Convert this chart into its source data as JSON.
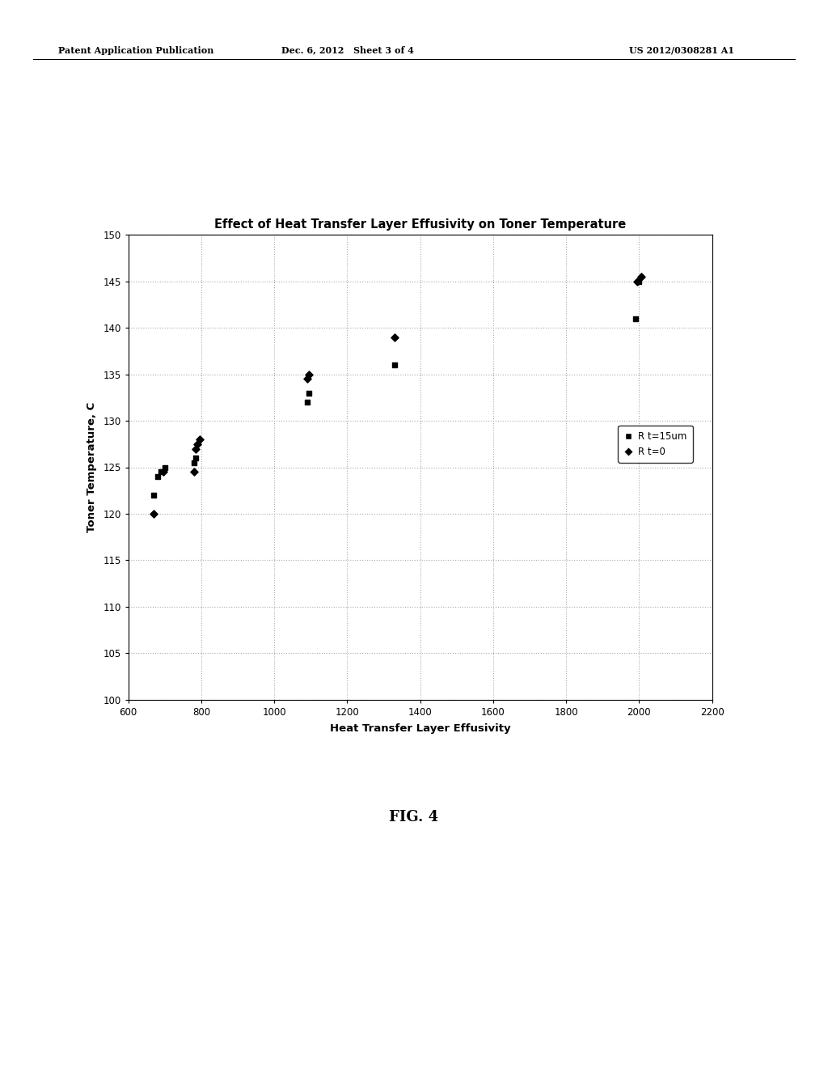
{
  "title": "Effect of Heat Transfer Layer Effusivity on Toner Temperature",
  "xlabel": "Heat Transfer Layer Effusivity",
  "ylabel": "Toner Temperature, C",
  "xlim": [
    600,
    2200
  ],
  "ylim": [
    100,
    150
  ],
  "xticks": [
    600,
    800,
    1000,
    1200,
    1400,
    1600,
    1800,
    2000,
    2200
  ],
  "yticks": [
    100,
    105,
    110,
    115,
    120,
    125,
    130,
    135,
    140,
    145,
    150
  ],
  "square_x": [
    670,
    680,
    690,
    700,
    780,
    785,
    1090,
    1095,
    1330,
    1990,
    2000
  ],
  "square_y": [
    122,
    124,
    124.5,
    125,
    125.5,
    126,
    132,
    133,
    136,
    141,
    145
  ],
  "diamond_x": [
    670,
    695,
    780,
    785,
    790,
    795,
    1090,
    1095,
    1330,
    1995,
    2005
  ],
  "diamond_y": [
    120,
    124.5,
    124.5,
    127,
    127.5,
    128,
    134.5,
    135,
    139,
    145,
    145.5
  ],
  "legend_label_square": "R t=15um",
  "legend_label_diamond": "R t=0",
  "marker_color": "#000000",
  "grid_color": "#aaaaaa",
  "grid_linestyle": ":",
  "background_color": "#ffffff",
  "header_left": "Patent Application Publication",
  "header_center": "Dec. 6, 2012   Sheet 3 of 4",
  "header_right": "US 2012/0308281 A1",
  "fig_label": "FIG. 4",
  "title_fontsize": 10.5,
  "axis_label_fontsize": 9.5,
  "tick_fontsize": 8.5,
  "header_fontsize": 8,
  "fig_label_fontsize": 13
}
